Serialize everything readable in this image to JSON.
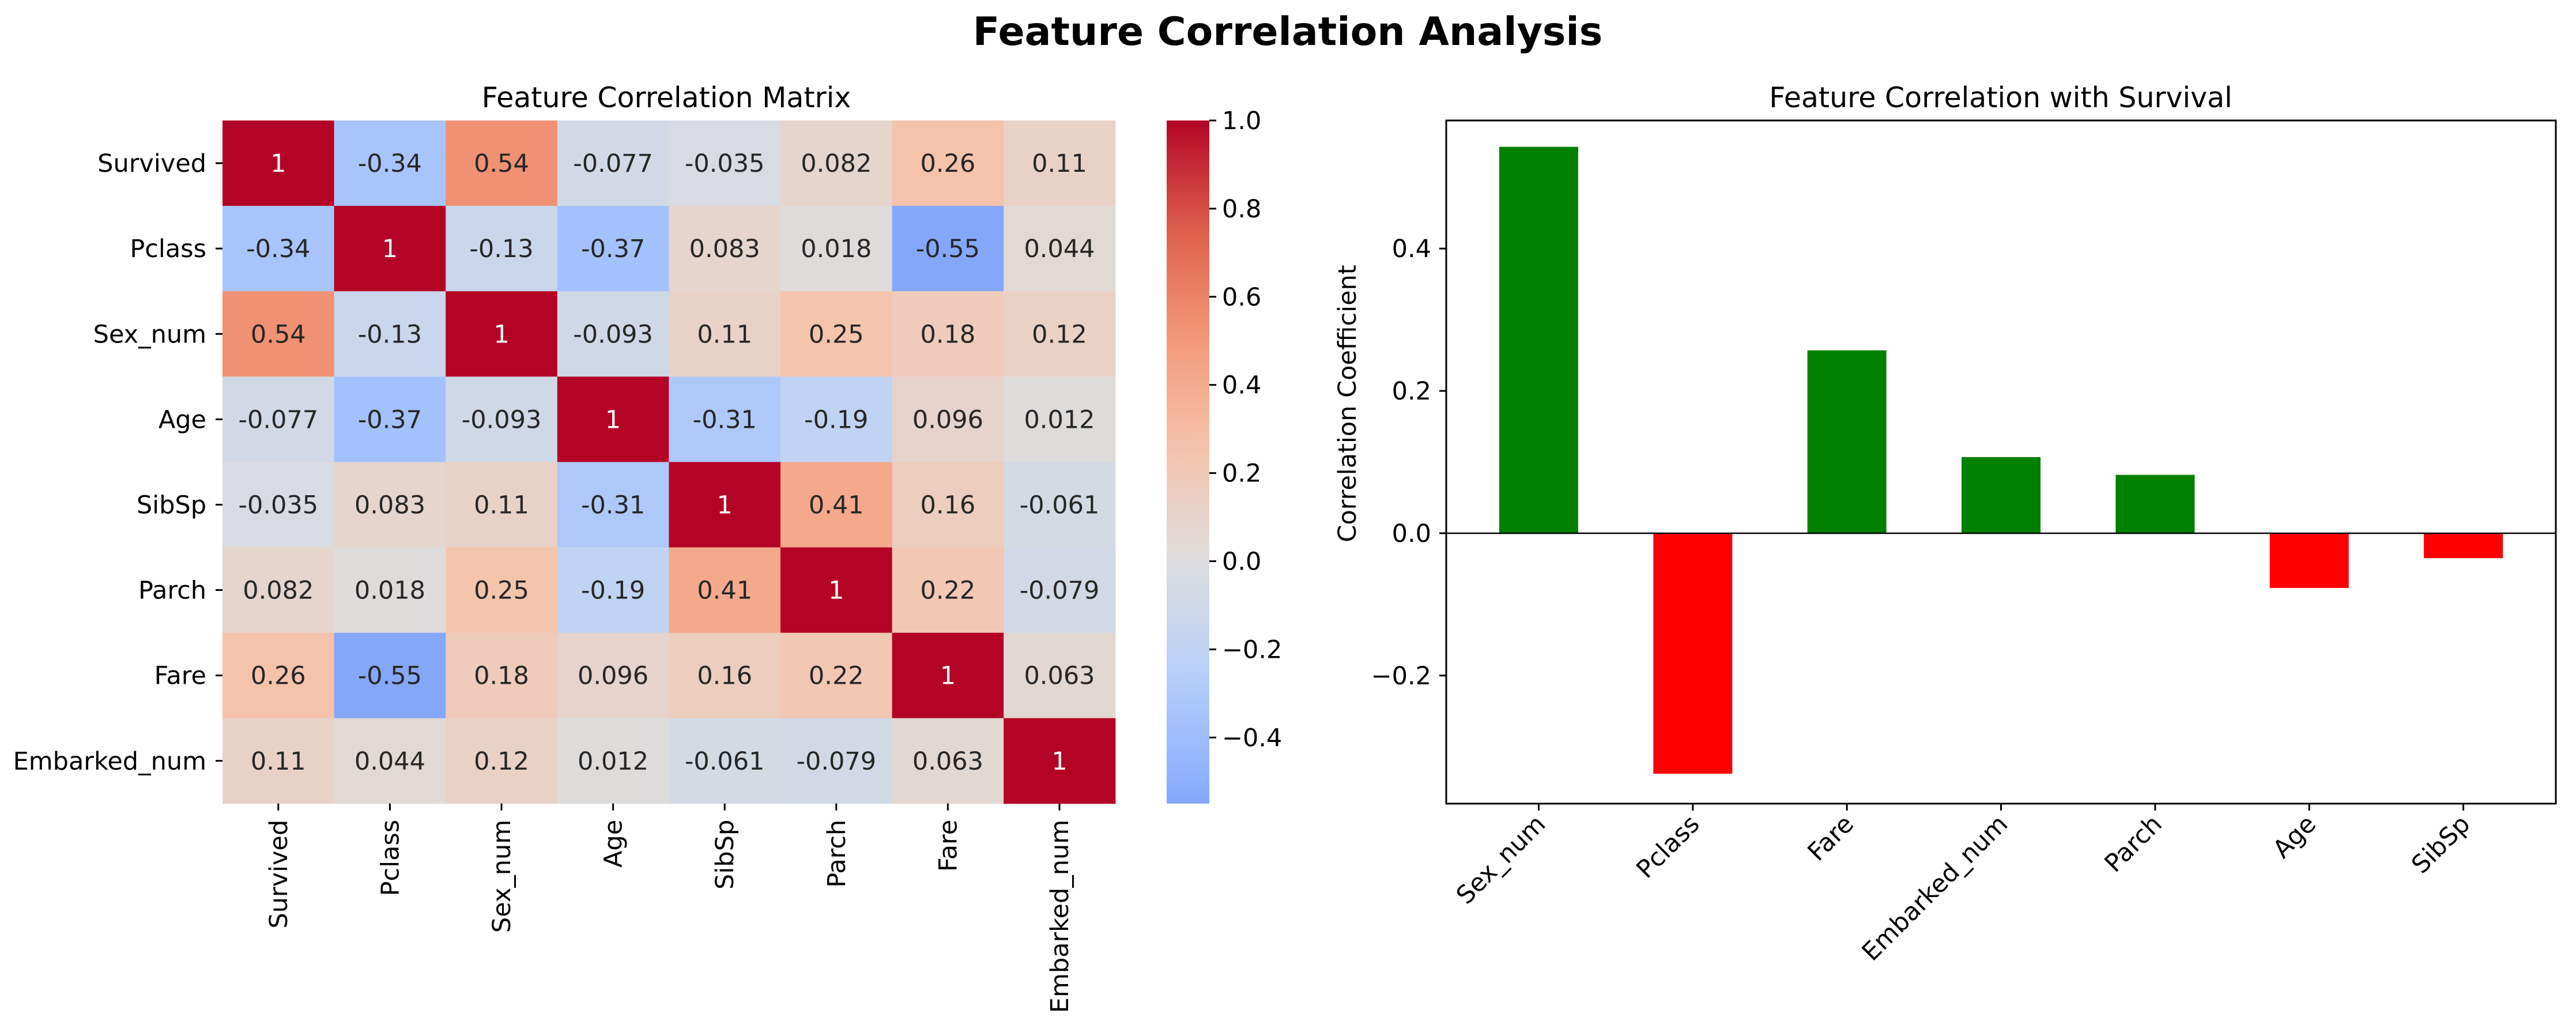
{
  "figure": {
    "title": "Feature Correlation Analysis"
  },
  "chart_data": [
    {
      "type": "heatmap",
      "title": "Feature Correlation Matrix",
      "xlabel": "",
      "ylabel": "",
      "labels": [
        "Survived",
        "Pclass",
        "Sex_num",
        "Age",
        "SibSp",
        "Parch",
        "Fare",
        "Embarked_num"
      ],
      "matrix": [
        [
          1,
          -0.34,
          0.54,
          -0.077,
          -0.035,
          0.082,
          0.26,
          0.11
        ],
        [
          -0.34,
          1,
          -0.13,
          -0.37,
          0.083,
          0.018,
          -0.55,
          0.044
        ],
        [
          0.54,
          -0.13,
          1,
          -0.093,
          0.11,
          0.25,
          0.18,
          0.12
        ],
        [
          -0.077,
          -0.37,
          -0.093,
          1,
          -0.31,
          -0.19,
          0.096,
          0.012
        ],
        [
          -0.035,
          0.083,
          0.11,
          -0.31,
          1,
          0.41,
          0.16,
          -0.061
        ],
        [
          0.082,
          0.018,
          0.25,
          -0.19,
          0.41,
          1,
          0.22,
          -0.079
        ],
        [
          0.26,
          -0.55,
          0.18,
          0.096,
          0.16,
          0.22,
          1,
          0.063
        ],
        [
          0.11,
          0.044,
          0.12,
          0.012,
          -0.061,
          -0.079,
          0.063,
          1
        ]
      ],
      "colormap": "coolwarm",
      "center": 0,
      "vmin": -0.55,
      "vmax": 1.0,
      "annotated": true,
      "colorbar_ticks": [
        "1.0",
        "0.8",
        "0.6",
        "0.4",
        "0.2",
        "0.0",
        "−0.2",
        "−0.4"
      ],
      "colorbar_tick_values": [
        1.0,
        0.8,
        0.6,
        0.4,
        0.2,
        0.0,
        -0.2,
        -0.4
      ]
    },
    {
      "type": "bar",
      "title": "Feature Correlation with Survival",
      "xlabel": "",
      "ylabel": "Correlation Coefficient",
      "categories": [
        "Sex_num",
        "Pclass",
        "Fare",
        "Embarked_num",
        "Parch",
        "Age",
        "SibSp"
      ],
      "values": [
        0.543,
        -0.338,
        0.257,
        0.107,
        0.082,
        -0.077,
        -0.035
      ],
      "ylim": [
        -0.38,
        0.58
      ],
      "yticks": [
        -0.2,
        0.0,
        0.2,
        0.4
      ],
      "ytick_labels": [
        "−0.2",
        "0.0",
        "0.2",
        "0.4"
      ],
      "positive_color": "#008000",
      "negative_color": "#ff0000",
      "zero_line": true,
      "grid": false
    }
  ]
}
